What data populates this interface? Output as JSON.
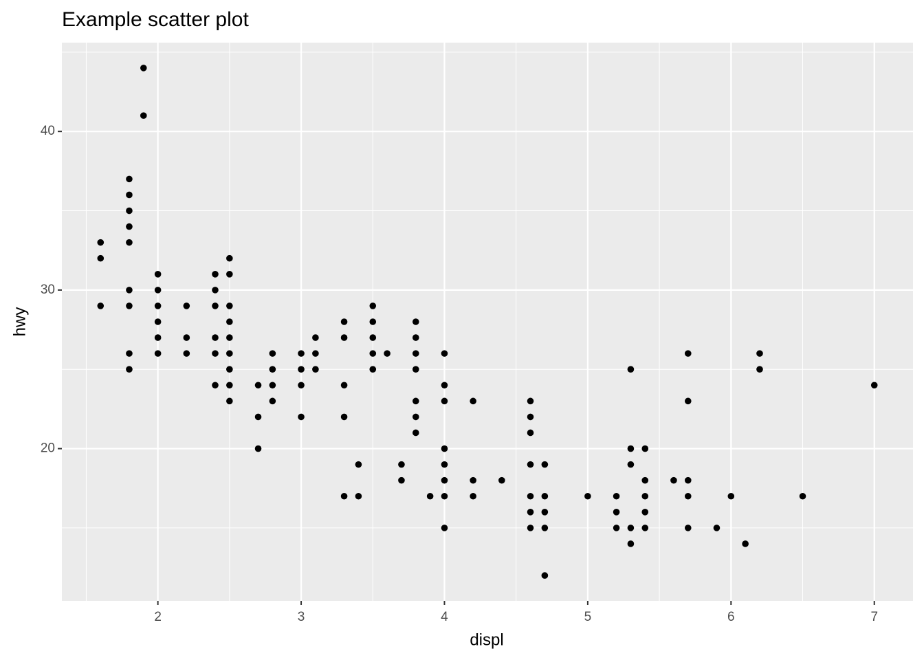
{
  "chart_data": {
    "type": "scatter",
    "title": "Example scatter plot",
    "x_label": "displ",
    "y_label": "hwy",
    "x": [
      1.6,
      1.6,
      1.6,
      1.8,
      1.8,
      1.8,
      1.8,
      1.8,
      1.8,
      1.8,
      1.8,
      1.8,
      1.9,
      1.9,
      2.0,
      2.0,
      2.0,
      2.0,
      2.0,
      2.0,
      2.2,
      2.2,
      2.2,
      2.4,
      2.4,
      2.4,
      2.4,
      2.4,
      2.4,
      2.5,
      2.5,
      2.5,
      2.5,
      2.5,
      2.5,
      2.5,
      2.5,
      2.5,
      2.7,
      2.7,
      2.7,
      2.8,
      2.8,
      2.8,
      2.8,
      3.0,
      3.0,
      3.0,
      3.0,
      3.1,
      3.1,
      3.1,
      3.3,
      3.3,
      3.3,
      3.3,
      3.3,
      3.4,
      3.4,
      3.5,
      3.5,
      3.5,
      3.5,
      3.5,
      3.6,
      3.7,
      3.7,
      3.8,
      3.8,
      3.8,
      3.8,
      3.8,
      3.8,
      3.8,
      3.9,
      4.0,
      4.0,
      4.0,
      4.0,
      4.0,
      4.0,
      4.0,
      4.0,
      4.2,
      4.2,
      4.2,
      4.4,
      4.6,
      4.6,
      4.6,
      4.6,
      4.6,
      4.6,
      4.6,
      4.7,
      4.7,
      4.7,
      4.7,
      4.7,
      5.0,
      5.2,
      5.2,
      5.2,
      5.3,
      5.3,
      5.3,
      5.3,
      5.3,
      5.4,
      5.4,
      5.4,
      5.4,
      5.4,
      5.6,
      5.7,
      5.7,
      5.7,
      5.7,
      5.7,
      5.9,
      6.0,
      6.1,
      6.2,
      6.2,
      6.5,
      7.0
    ],
    "values": [
      33,
      32,
      29,
      37,
      36,
      35,
      34,
      33,
      30,
      29,
      26,
      25,
      44,
      41,
      31,
      30,
      29,
      28,
      27,
      26,
      29,
      27,
      26,
      31,
      30,
      29,
      27,
      26,
      24,
      32,
      31,
      29,
      28,
      27,
      26,
      25,
      24,
      23,
      24,
      22,
      20,
      26,
      25,
      24,
      23,
      26,
      25,
      24,
      22,
      27,
      26,
      25,
      28,
      27,
      24,
      22,
      17,
      19,
      17,
      29,
      28,
      27,
      26,
      25,
      26,
      19,
      18,
      28,
      27,
      26,
      25,
      23,
      22,
      21,
      17,
      26,
      24,
      23,
      20,
      19,
      18,
      17,
      15,
      23,
      18,
      17,
      18,
      23,
      22,
      21,
      19,
      17,
      16,
      15,
      19,
      17,
      16,
      15,
      12,
      17,
      17,
      16,
      15,
      25,
      20,
      19,
      15,
      14,
      20,
      18,
      17,
      16,
      15,
      18,
      26,
      23,
      18,
      17,
      15,
      15,
      17,
      14,
      26,
      25,
      17,
      24
    ],
    "color": "#000000",
    "xlim": [
      1.33,
      7.27
    ],
    "xticks": [
      2,
      3,
      4,
      5,
      6,
      7
    ],
    "xminorticks": [
      1.5,
      2.5,
      3.5,
      4.5,
      5.5,
      6.5
    ],
    "ylim": [
      10.4,
      45.6
    ],
    "yticks": [
      20,
      30,
      40
    ],
    "yminorticks": [
      15,
      25,
      35,
      45
    ],
    "grid": true
  }
}
